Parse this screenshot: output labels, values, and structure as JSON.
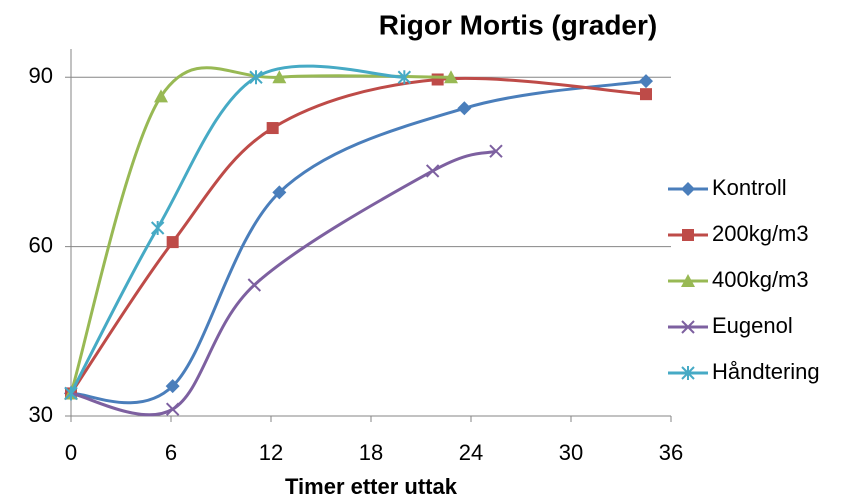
{
  "chart_data": {
    "type": "scatter",
    "title": "Rigor Mortis (grader)",
    "x_label": "Timer etter uttak",
    "xlim": [
      0,
      36
    ],
    "xticks": [
      0,
      6,
      12,
      18,
      24,
      30,
      36
    ],
    "ylim": [
      30,
      95
    ],
    "yticks": [
      30,
      60,
      90
    ],
    "grid": true,
    "smooth": true,
    "legend": "right",
    "series": [
      {
        "name": "Kontroll",
        "color": "#4a7ebb",
        "marker": "diamond",
        "x": [
          0,
          6.1,
          12.5,
          23.6,
          34.5
        ],
        "values": [
          34,
          35.3,
          69.6,
          84.5,
          89.3
        ]
      },
      {
        "name": "200kg/m3",
        "color": "#be4b48",
        "marker": "square",
        "x": [
          0,
          6.1,
          12.1,
          22,
          34.5
        ],
        "values": [
          34,
          60.8,
          81,
          89.6,
          87
        ]
      },
      {
        "name": "400kg/m3",
        "color": "#98b954",
        "marker": "triangle",
        "x": [
          0,
          5.4,
          12.5,
          22.8
        ],
        "values": [
          34,
          86.6,
          90,
          90
        ]
      },
      {
        "name": "Eugenol",
        "color": "#7d60a0",
        "marker": "x",
        "x": [
          0,
          6.1,
          11,
          21.7,
          25.5
        ],
        "values": [
          34,
          31.2,
          53.2,
          73.4,
          76.9
        ]
      },
      {
        "name": "Håndtering",
        "color": "#46aac5",
        "marker": "star",
        "x": [
          0,
          5.2,
          11.1,
          20
        ],
        "values": [
          34,
          63.3,
          90,
          90
        ]
      }
    ]
  }
}
